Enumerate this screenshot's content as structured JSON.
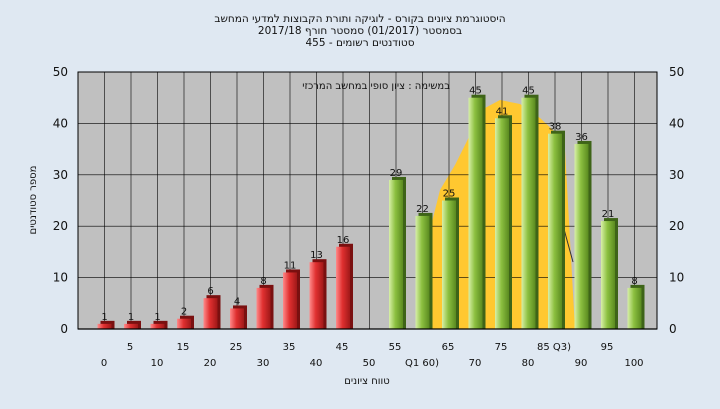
{
  "chart_data": {
    "type": "bar",
    "title_lines": [
      "היסטוגרמת ציונים בקורס - לוגיקה ותורת הקבוצות למדעי המחשב",
      "בסמסטר  (01/2017)  סמסטר חורף 2017/18",
      "455 - סטודנטים רשומים"
    ],
    "annotation": "במשימה : ציון סופי במחשב המרכזי",
    "ylabel": "מספר סטודנטים",
    "xlabel": "טווח ציונים",
    "ylim": [
      0,
      50
    ],
    "yticks": [
      0,
      10,
      20,
      30,
      40,
      50
    ],
    "xlabels_top": [
      "5",
      "15",
      "25",
      "35",
      "45",
      "55",
      "65",
      "75",
      "85 Q3)",
      "95"
    ],
    "xlabels_bottom": [
      "0",
      "10",
      "20",
      "30",
      "40",
      "50",
      "Q1 60)",
      "70",
      "80",
      "90",
      "100"
    ],
    "series": [
      {
        "color": "#e03030",
        "values": [
          1,
          1,
          1,
          2,
          6,
          4,
          8,
          11,
          13,
          16
        ]
      },
      {
        "color": "#8cc040",
        "values": [
          29,
          22,
          25,
          45,
          41,
          45,
          38,
          36,
          21,
          8
        ]
      }
    ],
    "bar_labels": [
      1,
      1,
      1,
      2,
      6,
      4,
      8,
      11,
      13,
      16,
      29,
      22,
      25,
      45,
      41,
      45,
      38,
      36,
      21,
      8
    ],
    "distribution_curve_color": "#ffc830",
    "colors": {
      "background": "#dfe8f2",
      "plot_area": "#c0c0c0",
      "grid": "#000000"
    }
  }
}
